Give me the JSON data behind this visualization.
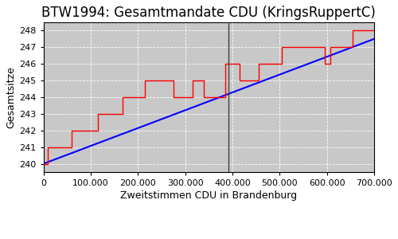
{
  "title": "BTW1994: Gesamtmandate CDU (KringsRuppertC)",
  "xlabel": "Zweitstimmen CDU in Brandenburg",
  "ylabel": "Gesamtsitze",
  "xlim": [
    0,
    700000
  ],
  "ylim": [
    239.5,
    248.5
  ],
  "yticks": [
    240,
    241,
    242,
    243,
    244,
    245,
    246,
    247,
    248
  ],
  "xticks": [
    0,
    100000,
    200000,
    300000,
    400000,
    500000,
    600000,
    700000
  ],
  "wahlergebnis_x": 391000,
  "ideal_start_x": 0,
  "ideal_start_y": 240.0,
  "ideal_end_x": 700000,
  "ideal_end_y": 247.5,
  "step_x": [
    0,
    10000,
    10000,
    60000,
    60000,
    115000,
    115000,
    168000,
    168000,
    215000,
    215000,
    275000,
    275000,
    315000,
    315000,
    340000,
    340000,
    355000,
    355000,
    385000,
    385000,
    415000,
    415000,
    455000,
    455000,
    505000,
    505000,
    535000,
    535000,
    565000,
    565000,
    595000,
    595000,
    607000,
    607000,
    655000,
    655000,
    667000,
    667000,
    700000
  ],
  "step_y": [
    240,
    240,
    241,
    241,
    242,
    242,
    243,
    243,
    244,
    244,
    245,
    245,
    244,
    244,
    245,
    245,
    244,
    244,
    244,
    244,
    246,
    246,
    245,
    245,
    246,
    246,
    247,
    247,
    247,
    247,
    247,
    247,
    246,
    246,
    247,
    247,
    248,
    248,
    248,
    248
  ],
  "bg_color": "#ffffff",
  "plot_bg_color": "#c8c8c8",
  "line_real_color": "red",
  "line_ideal_color": "blue",
  "line_wahl_color": "#404040",
  "title_fontsize": 12,
  "label_fontsize": 9,
  "tick_fontsize": 8,
  "legend_fontsize": 8
}
